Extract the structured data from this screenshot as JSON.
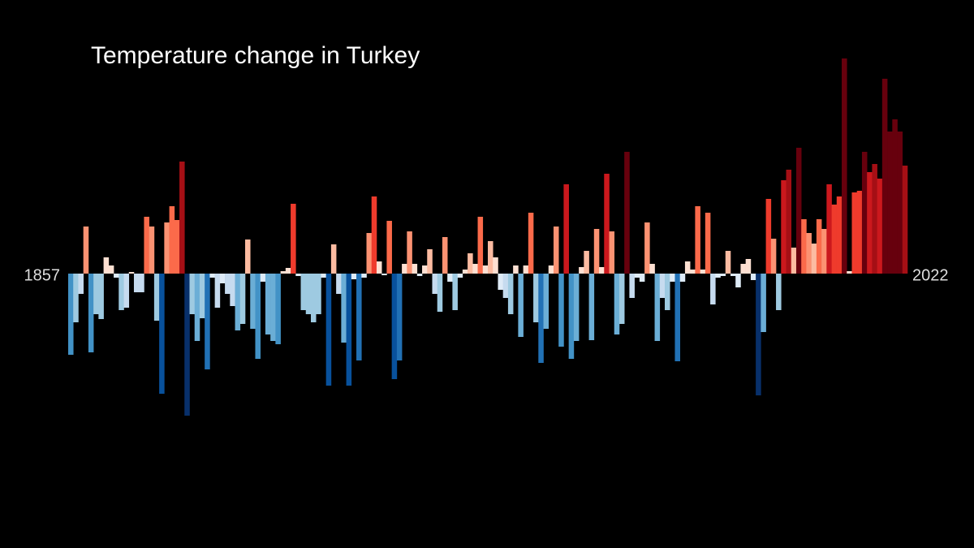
{
  "chart_data": {
    "type": "bar",
    "title": "Temperature change in Turkey",
    "categories": [
      "1857",
      null,
      null,
      null,
      null,
      null,
      null,
      null,
      null,
      null,
      null,
      null,
      null,
      null,
      null,
      null,
      null,
      null,
      null,
      null,
      null,
      null,
      null,
      null,
      null,
      null,
      null,
      null,
      null,
      null,
      null,
      null,
      null,
      null,
      null,
      null,
      null,
      null,
      null,
      null,
      null,
      null,
      null,
      null,
      null,
      null,
      null,
      null,
      null,
      null,
      null,
      null,
      null,
      null,
      null,
      null,
      null,
      null,
      null,
      null,
      null,
      null,
      null,
      null,
      null,
      null,
      null,
      null,
      null,
      null,
      null,
      null,
      null,
      null,
      null,
      null,
      null,
      null,
      null,
      null,
      null,
      null,
      null,
      null,
      null,
      null,
      null,
      null,
      null,
      null,
      null,
      null,
      null,
      null,
      null,
      null,
      null,
      null,
      null,
      null,
      null,
      null,
      null,
      null,
      null,
      null,
      null,
      null,
      null,
      null,
      null,
      null,
      null,
      null,
      null,
      null,
      null,
      null,
      null,
      null,
      null,
      null,
      null,
      null,
      null,
      null,
      null,
      null,
      null,
      null,
      null,
      null,
      null,
      null,
      null,
      null,
      null,
      null,
      null,
      null,
      null,
      null,
      null,
      null,
      null,
      null,
      null,
      null,
      null,
      null,
      null,
      null,
      null,
      null,
      null,
      null,
      null,
      null,
      null,
      null,
      null,
      null,
      null,
      null,
      null,
      "2022"
    ],
    "values": [
      -1.0,
      -0.6,
      -0.25,
      0.58,
      -0.97,
      -0.5,
      -0.56,
      0.2,
      0.1,
      -0.05,
      -0.45,
      -0.42,
      0.02,
      -0.23,
      -0.23,
      0.7,
      0.58,
      -0.58,
      -1.48,
      0.63,
      0.83,
      0.66,
      1.38,
      -1.75,
      -0.5,
      -0.83,
      -0.55,
      -1.18,
      -0.05,
      -0.42,
      -0.12,
      -0.25,
      -0.4,
      -0.7,
      -0.62,
      0.42,
      -0.68,
      -1.05,
      -0.1,
      -0.75,
      -0.83,
      -0.87,
      0.03,
      0.07,
      0.86,
      -0.03,
      -0.45,
      -0.5,
      -0.6,
      -0.5,
      -0.05,
      -1.38,
      0.36,
      -0.25,
      -0.85,
      -1.38,
      -0.07,
      -1.07,
      -0.05,
      0.5,
      0.95,
      0.15,
      -0.02,
      0.65,
      -1.3,
      -1.07,
      0.12,
      0.52,
      0.12,
      -0.03,
      0.1,
      0.3,
      -0.25,
      -0.47,
      0.45,
      -0.1,
      -0.45,
      -0.05,
      0.05,
      0.25,
      0.12,
      0.7,
      0.1,
      0.4,
      0.2,
      -0.2,
      -0.3,
      -0.5,
      0.1,
      -0.78,
      0.1,
      0.75,
      -0.6,
      -1.1,
      -0.68,
      0.1,
      0.58,
      -0.9,
      1.1,
      -1.05,
      -0.83,
      0.08,
      0.28,
      -0.82,
      0.55,
      0.08,
      1.23,
      0.52,
      -0.75,
      -0.62,
      1.5,
      -0.3,
      -0.05,
      -0.1,
      0.63,
      0.12,
      -0.83,
      -0.3,
      -0.45,
      -0.1,
      -1.08,
      -0.1,
      0.15,
      0.05,
      0.83,
      0.05,
      0.75,
      -0.38,
      -0.05,
      -0.03,
      0.28,
      -0.03,
      -0.17,
      0.12,
      0.18,
      -0.08,
      -1.5,
      -0.72,
      0.92,
      0.43,
      -0.45,
      1.15,
      1.28,
      0.32,
      1.55,
      0.67,
      0.5,
      0.37,
      0.67,
      0.55,
      1.1,
      0.85,
      0.95,
      2.65,
      0.03,
      1.0,
      1.02,
      1.5,
      1.25,
      1.35,
      1.17,
      2.4,
      1.75,
      1.9,
      1.75,
      1.33
    ],
    "ylim": [
      -2,
      3
    ],
    "colormap": [
      "#08306b",
      "#08519c",
      "#2171b5",
      "#4292c6",
      "#6baed6",
      "#9ecae1",
      "#c6dbef",
      "#deebf7",
      "#fee0d2",
      "#fcbba1",
      "#fc9272",
      "#fb6a4a",
      "#ef3b2c",
      "#cb181d",
      "#a50f15",
      "#67000d"
    ],
    "color_range": [
      -1.7,
      1.7
    ]
  }
}
